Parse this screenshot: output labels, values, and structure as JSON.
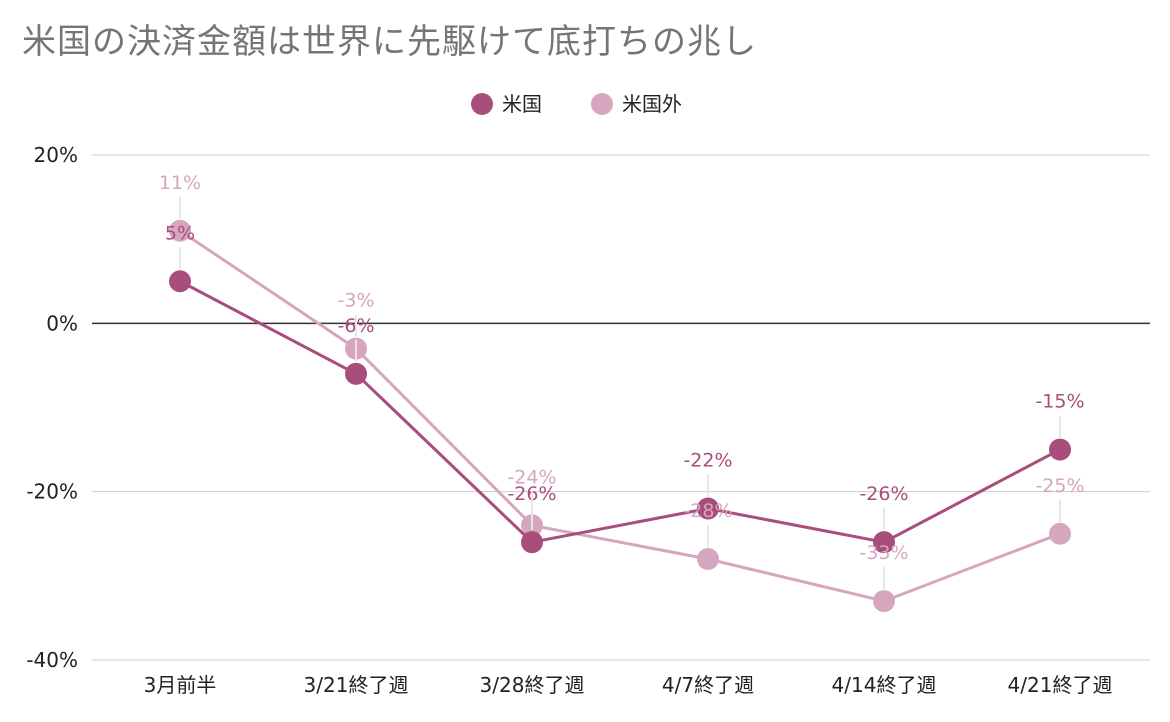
{
  "chart_data": {
    "type": "line",
    "title": "米国の決済金額は世界に先駆けて底打ちの兆し",
    "xlabel": "",
    "ylabel": "",
    "categories": [
      "3月前半",
      "3/21終了週",
      "3/28終了週",
      "4/7終了週",
      "4/14終了週",
      "4/21終了週"
    ],
    "series": [
      {
        "name": "米国",
        "color": "#a84d7c",
        "values": [
          5,
          -6,
          -26,
          -22,
          -26,
          -15
        ],
        "labels": [
          "5%",
          "-6%",
          "-26%",
          "-22%",
          "-26%",
          "-15%"
        ]
      },
      {
        "name": "米国外",
        "color": "#d6a6be",
        "values": [
          11,
          -3,
          -24,
          -28,
          -33,
          -25
        ],
        "labels": [
          "11%",
          "-3%",
          "-24%",
          "-28%",
          "-33%",
          "-25%"
        ]
      }
    ],
    "ylim": [
      -40,
      20
    ],
    "yticks": [
      20,
      0,
      -20,
      -40
    ],
    "ytick_labels": [
      "20%",
      "0%",
      "-20%",
      "-40%"
    ],
    "grid": true,
    "legend_position": "top-center"
  }
}
